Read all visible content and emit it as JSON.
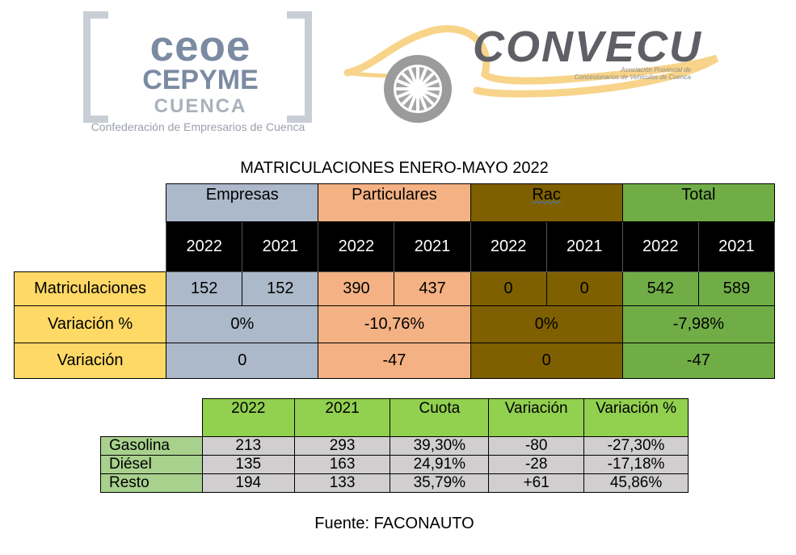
{
  "logos": {
    "ceoe": {
      "line1": "ceoe",
      "line2": "CEPYME",
      "line3": "CUENCA",
      "tagline": "Confederación de Empresarios de Cuenca",
      "color": "#7a8ba2"
    },
    "convecu": {
      "name": "CONVECU",
      "subtitle_line1": "Asociación Provincial de",
      "subtitle_line2": "Concesionarios de Vehículos de Cuenca",
      "swoosh_color": "#f7d48a",
      "icon": "car-wheel-icon"
    }
  },
  "title": "MATRICULACIONES ENERO-MAYO 2022",
  "registrations_table": {
    "groups": [
      {
        "name": "Empresas",
        "color": "#acb9ca",
        "y2022": "152",
        "y2021": "152",
        "variation_pct": "0%",
        "variation": "0"
      },
      {
        "name": "Particulares",
        "color": "#f4b183",
        "y2022": "390",
        "y2021": "437",
        "variation_pct": "-10,76%",
        "variation": "-47"
      },
      {
        "name": "Rac",
        "color": "#7f6000",
        "y2022": "0",
        "y2021": "0",
        "variation_pct": "0%",
        "variation": "0"
      },
      {
        "name": "Total",
        "color": "#70ad47",
        "y2022": "542",
        "y2021": "589",
        "variation_pct": "-7,98%",
        "variation": "-47"
      }
    ],
    "years": [
      "2022",
      "2021"
    ],
    "row_labels": [
      "Matriculaciones",
      "Variación %",
      "Variación"
    ],
    "label_color": "#ffd966"
  },
  "fuel_table": {
    "headers": [
      "2022",
      "2021",
      "Cuota",
      "Variación",
      "Variación %"
    ],
    "rows": [
      {
        "label": "Gasolina",
        "cells": [
          "213",
          "293",
          "39,30%",
          "-80",
          "-27,30%"
        ]
      },
      {
        "label": "Diésel",
        "cells": [
          "135",
          "163",
          "24,91%",
          "-28",
          "-17,18%"
        ]
      },
      {
        "label": "Resto",
        "cells": [
          "194",
          "133",
          "35,79%",
          "+61",
          "45,86%"
        ]
      }
    ]
  },
  "source": "Fuente: FACONAUTO"
}
